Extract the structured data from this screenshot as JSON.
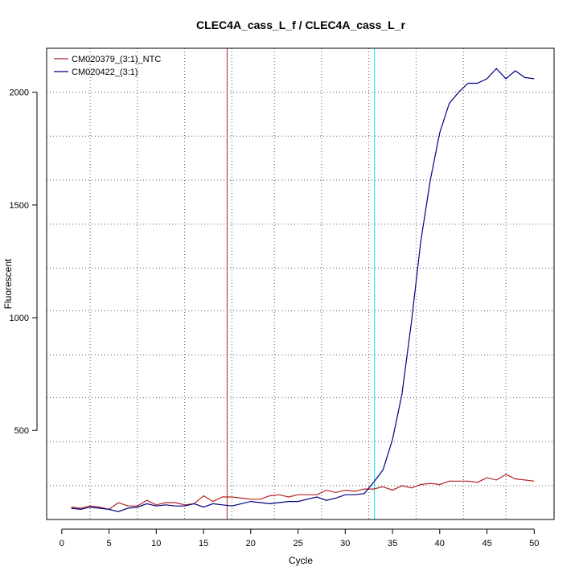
{
  "chart_data": {
    "type": "line",
    "title": "CLEC4A_cass_L_f / CLEC4A_cass_L_r",
    "xlabel": "Cycle",
    "ylabel": "Fluorescent",
    "xlim": [
      -1.6,
      52.1
    ],
    "ylim": [
      105,
      2195
    ],
    "xticks": [
      0,
      5,
      10,
      15,
      20,
      25,
      30,
      35,
      40,
      45,
      50
    ],
    "yticks": [
      500,
      1000,
      1500,
      2000
    ],
    "grid": "dotted",
    "grid_x": [
      3,
      8,
      13,
      18,
      22.5,
      27.5,
      32.5,
      37.5,
      42.5,
      47
    ],
    "grid_y": [
      255,
      450,
      645,
      835,
      1030,
      1220,
      1415,
      1610,
      1805,
      2000
    ],
    "legend_position": "top-left",
    "vlines": [
      {
        "x": 17.5,
        "color": "#b22222"
      },
      {
        "x": 33.1,
        "color": "#00e5ee"
      }
    ],
    "x": [
      1,
      2,
      3,
      4,
      5,
      6,
      7,
      8,
      9,
      10,
      11,
      12,
      13,
      14,
      15,
      16,
      17,
      18,
      19,
      20,
      21,
      22,
      23,
      24,
      25,
      26,
      27,
      28,
      29,
      30,
      31,
      32,
      33,
      34,
      35,
      36,
      37,
      38,
      39,
      40,
      41,
      42,
      43,
      44,
      45,
      46,
      47,
      48,
      49,
      50
    ],
    "series": [
      {
        "name": "CM020379_(3:1)_NTC",
        "color": "#b22222",
        "values": [
          160,
          155,
          165,
          160,
          150,
          180,
          165,
          165,
          190,
          170,
          180,
          180,
          170,
          175,
          210,
          185,
          205,
          205,
          200,
          195,
          195,
          210,
          215,
          205,
          215,
          215,
          215,
          235,
          225,
          235,
          230,
          240,
          240,
          250,
          235,
          255,
          245,
          260,
          265,
          260,
          275,
          275,
          275,
          270,
          290,
          280,
          305,
          285,
          280,
          275
        ]
      },
      {
        "name": "CM020422_(3:1)",
        "color": "#000080",
        "values": [
          155,
          150,
          160,
          155,
          150,
          140,
          155,
          160,
          175,
          165,
          170,
          165,
          165,
          175,
          160,
          175,
          170,
          165,
          175,
          185,
          180,
          175,
          180,
          185,
          185,
          195,
          205,
          190,
          200,
          215,
          215,
          220,
          270,
          325,
          460,
          660,
          980,
          1340,
          1610,
          1820,
          1950,
          2000,
          2040,
          2040,
          2060,
          2105,
          2060,
          2095,
          2065,
          2060
        ]
      }
    ]
  }
}
